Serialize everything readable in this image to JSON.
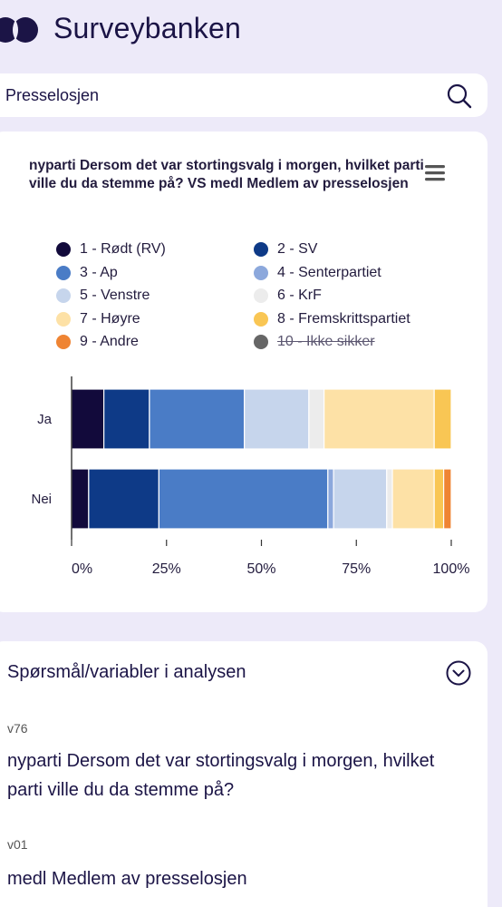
{
  "header": {
    "brand": "Surveybanken"
  },
  "search": {
    "value": "Presselosjen"
  },
  "chart": {
    "title": "nyparti Dersom det var stortingsvalg i morgen, hvilket parti ville du da stemme på? VS medl Medlem av presselosjen"
  },
  "chart_data": {
    "type": "bar",
    "orientation": "horizontal",
    "stacked": true,
    "normalized_percent": true,
    "title": "nyparti Dersom det var stortingsvalg i morgen, hvilket parti ville du da stemme på? VS medl Medlem av presselosjen",
    "categories": [
      "Ja",
      "Nei"
    ],
    "xticks": [
      "0%",
      "25%",
      "50%",
      "75%",
      "100%"
    ],
    "xlim": [
      0,
      100
    ],
    "legend_position": "top",
    "series": [
      {
        "name": "1 - Rødt (RV)",
        "color": "#120a3b",
        "values": [
          8.5,
          4.5
        ],
        "visible": true
      },
      {
        "name": "2 - SV",
        "color": "#0e3a87",
        "values": [
          12,
          18.5
        ],
        "visible": true
      },
      {
        "name": "3 - Ap",
        "color": "#4a7cc6",
        "values": [
          25,
          44.5
        ],
        "visible": true
      },
      {
        "name": "4 - Senterpartiet",
        "color": "#8ca8dc",
        "values": [
          0,
          1.5
        ],
        "visible": true
      },
      {
        "name": "5 - Venstre",
        "color": "#c6d5ec",
        "values": [
          17,
          14
        ],
        "visible": true
      },
      {
        "name": "6 - KrF",
        "color": "#ececec",
        "values": [
          4,
          1.5
        ],
        "visible": true
      },
      {
        "name": "7 - Høyre",
        "color": "#fde1a6",
        "values": [
          29,
          11
        ],
        "visible": true
      },
      {
        "name": "8 - Fremskrittspartiet",
        "color": "#f9c654",
        "values": [
          4.5,
          2.5
        ],
        "visible": true
      },
      {
        "name": "9 - Andre",
        "color": "#ef8433",
        "values": [
          0,
          2
        ],
        "visible": true
      },
      {
        "name": "10 - Ikke sikker",
        "color": "#666666",
        "values": [
          0,
          0
        ],
        "visible": false
      }
    ]
  },
  "variables": {
    "title": "Spørsmål/variabler i analysen",
    "items": [
      {
        "code": "v76",
        "text": "nyparti Dersom det var stortingsvalg i morgen, hvilket parti ville du da stemme på?"
      },
      {
        "code": "v01",
        "text": "medl Medlem av presselosjen"
      }
    ]
  }
}
